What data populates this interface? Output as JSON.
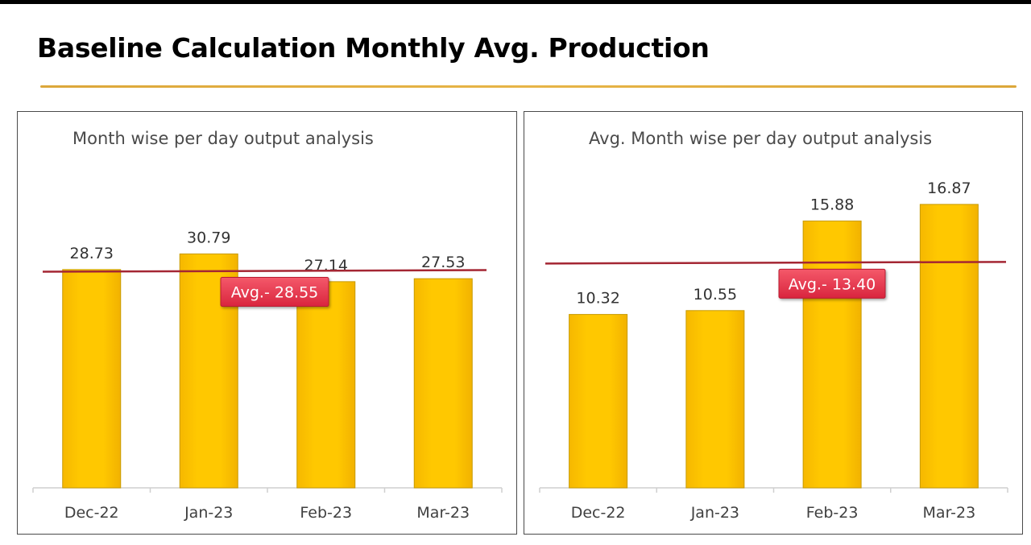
{
  "page": {
    "title": "Baseline Calculation Monthly Avg. Production"
  },
  "colors": {
    "bar_fill": "#FFC800",
    "bar_edge": "#C79A00",
    "avg_line": "#A42633",
    "avg_badge": "#E8384F",
    "title_rule": "#DCA73A"
  },
  "chart_data": [
    {
      "type": "bar",
      "title": "Month wise per day output analysis",
      "categories": [
        "Dec-22",
        "Jan-23",
        "Feb-23",
        "Mar-23"
      ],
      "values": [
        28.73,
        30.79,
        27.14,
        27.53
      ],
      "value_labels": [
        "28.73",
        "30.79",
        "27.14",
        "27.53"
      ],
      "ylim": [
        0,
        32
      ],
      "grid": false,
      "legend": "none",
      "reference_line": {
        "value": 28.55,
        "label": "Avg.- 28.55"
      }
    },
    {
      "type": "bar",
      "title": "Avg. Month wise per day output analysis",
      "categories": [
        "Dec-22",
        "Jan-23",
        "Feb-23",
        "Mar-23"
      ],
      "values": [
        10.32,
        10.55,
        15.88,
        16.87
      ],
      "value_labels": [
        "10.32",
        "10.55",
        "15.88",
        "16.87"
      ],
      "ylim": [
        0,
        19.5
      ],
      "grid": false,
      "legend": "none",
      "reference_line": {
        "value": 13.4,
        "label": "Avg.- 13.40"
      }
    }
  ]
}
